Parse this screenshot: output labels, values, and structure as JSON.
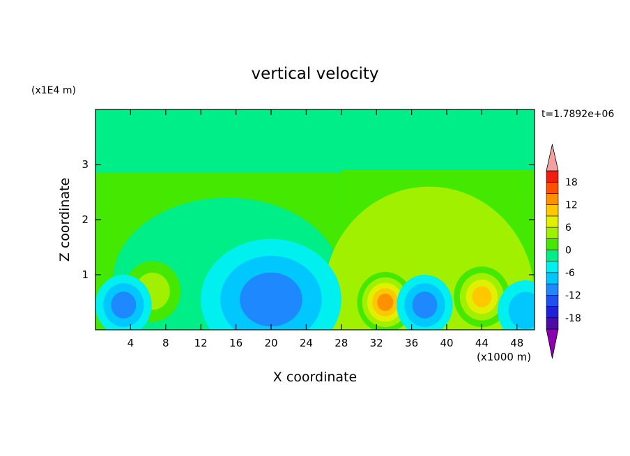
{
  "chart_data": {
    "type": "heatmap",
    "title": "vertical velocity",
    "xlabel": "X coordinate",
    "ylabel": "Z coordinate",
    "x_unit": "(x1000 m)",
    "y_unit": "(x1E4 m)",
    "time_label": "t=1.7892e+06",
    "xlim": [
      0,
      50
    ],
    "ylim": [
      0,
      4
    ],
    "x_ticks": [
      4,
      8,
      12,
      16,
      20,
      24,
      28,
      32,
      36,
      40,
      44,
      48
    ],
    "y_ticks": [
      1,
      2,
      3
    ],
    "background_color": "#00EE88",
    "colorbar": {
      "levels": [
        -21,
        -18,
        -15,
        -12,
        -9,
        -6,
        -3,
        0,
        3,
        6,
        9,
        12,
        15,
        18,
        21
      ],
      "tick_labels": [
        "18",
        "12",
        "6",
        "0",
        "-6",
        "-12",
        "-18"
      ],
      "tick_values": [
        18,
        12,
        6,
        0,
        -6,
        -12,
        -18
      ],
      "colors": [
        "#8B00B0",
        "#4B0CA8",
        "#2020D8",
        "#1E50F0",
        "#1E88FF",
        "#00C8FF",
        "#00F0F0",
        "#00EE88",
        "#44E800",
        "#A0F000",
        "#E0F000",
        "#FFC800",
        "#FF9000",
        "#FF5000",
        "#F01E10",
        "#F4A0A0"
      ]
    },
    "features": [
      {
        "kind": "updraft",
        "x": 33,
        "z": 0.5,
        "peak": 16
      },
      {
        "kind": "updraft",
        "x": 44,
        "z": 0.6,
        "peak": 12
      },
      {
        "kind": "updraft",
        "x": 6.5,
        "z": 0.7,
        "peak": 6
      },
      {
        "kind": "downdraft",
        "x": 20,
        "z": 0.55,
        "peak": -10
      },
      {
        "kind": "downdraft",
        "x": 3.2,
        "z": 0.45,
        "peak": -9
      },
      {
        "kind": "downdraft",
        "x": 37.5,
        "z": 0.45,
        "peak": -8
      },
      {
        "kind": "downdraft",
        "x": 49,
        "z": 0.35,
        "peak": -6
      }
    ]
  }
}
